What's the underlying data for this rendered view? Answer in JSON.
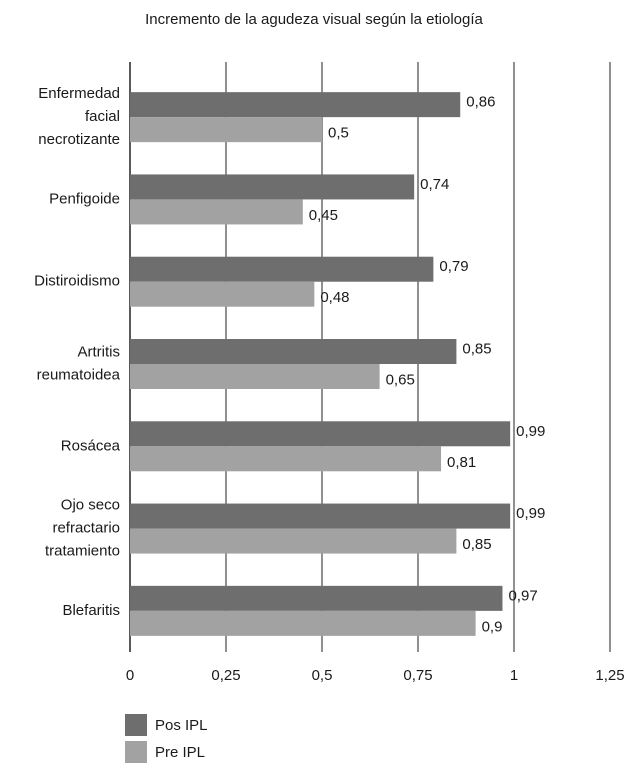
{
  "chart_data": {
    "type": "bar",
    "orientation": "horizontal",
    "title": "Incremento de la agudeza visual según la etiología",
    "categories": [
      "Enfermedad facial necrotizante",
      "Penfigoide",
      "Distiroidismo",
      "Artritis reumatoidea",
      "Rosácea",
      "Ojo seco refractario tratamiento",
      "Blefaritis"
    ],
    "series": [
      {
        "name": "Pos IPL",
        "color": "#6e6e6e",
        "values": [
          0.86,
          0.74,
          0.79,
          0.85,
          0.99,
          0.99,
          0.97
        ],
        "value_labels": [
          "0,86",
          "0,74",
          "0,79",
          "0,85",
          "0,99",
          "0,99",
          "0,97"
        ]
      },
      {
        "name": "Pre IPL",
        "color": "#a2a2a2",
        "values": [
          0.5,
          0.45,
          0.48,
          0.65,
          0.81,
          0.85,
          0.9
        ],
        "value_labels": [
          "0,5",
          "0,45",
          "0,48",
          "0,65",
          "0,81",
          "0,85",
          "0,9"
        ]
      }
    ],
    "xlim": [
      0,
      1.25
    ],
    "xticks": [
      0,
      {
        "value": 0.25,
        "label": "0,25"
      },
      {
        "value": 0.5,
        "label": "0,5"
      },
      {
        "value": 0.75,
        "label": "0,75"
      },
      1,
      {
        "value": 1.25,
        "label": "1,25"
      }
    ],
    "grid": true,
    "legend": "bottom-left"
  }
}
